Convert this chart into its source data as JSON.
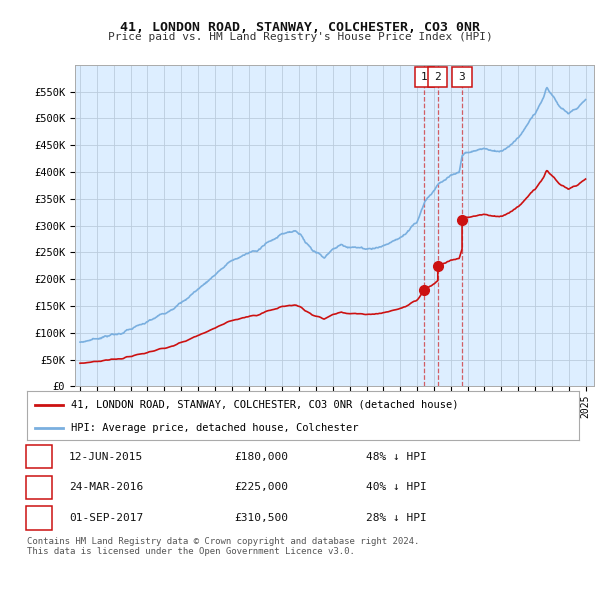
{
  "title1": "41, LONDON ROAD, STANWAY, COLCHESTER, CO3 0NR",
  "title2": "Price paid vs. HM Land Registry's House Price Index (HPI)",
  "ylabel_ticks": [
    "£0",
    "£50K",
    "£100K",
    "£150K",
    "£200K",
    "£250K",
    "£300K",
    "£350K",
    "£400K",
    "£450K",
    "£500K",
    "£550K"
  ],
  "ytick_values": [
    0,
    50000,
    100000,
    150000,
    200000,
    250000,
    300000,
    350000,
    400000,
    450000,
    500000,
    550000
  ],
  "ylim": [
    0,
    600000
  ],
  "hpi_color": "#7aafdf",
  "price_color": "#cc1111",
  "bg_color": "#ffffff",
  "chart_bg_color": "#ddeeff",
  "grid_color": "#bbccdd",
  "xlim_start": 1994.7,
  "xlim_end": 2025.5,
  "sale_dates": [
    2015.44,
    2016.23,
    2017.67
  ],
  "sale_prices": [
    180000,
    225000,
    310500
  ],
  "sale_labels": [
    "1",
    "2",
    "3"
  ],
  "legend_entries": [
    {
      "label": "41, LONDON ROAD, STANWAY, COLCHESTER, CO3 0NR (detached house)",
      "color": "#cc1111"
    },
    {
      "label": "HPI: Average price, detached house, Colchester",
      "color": "#7aafdf"
    }
  ],
  "table_rows": [
    {
      "num": "1",
      "date": "12-JUN-2015",
      "price": "£180,000",
      "hpi": "48% ↓ HPI"
    },
    {
      "num": "2",
      "date": "24-MAR-2016",
      "price": "£225,000",
      "hpi": "40% ↓ HPI"
    },
    {
      "num": "3",
      "date": "01-SEP-2017",
      "price": "£310,500",
      "hpi": "28% ↓ HPI"
    }
  ],
  "footer": "Contains HM Land Registry data © Crown copyright and database right 2024.\nThis data is licensed under the Open Government Licence v3.0."
}
